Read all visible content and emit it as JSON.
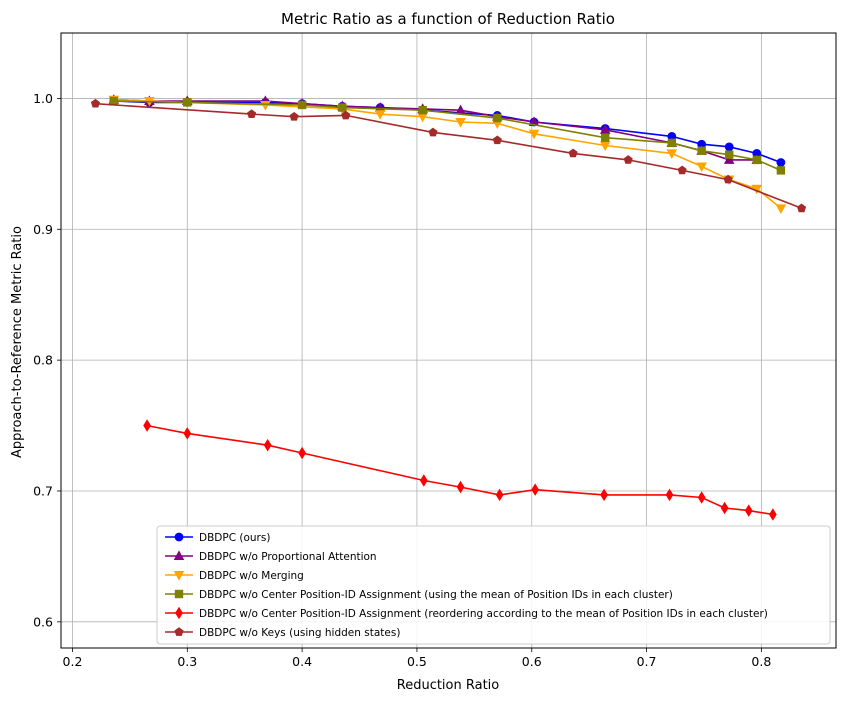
{
  "chart_data": {
    "type": "line",
    "title": "Metric Ratio as a function of Reduction Ratio",
    "xlabel": "Reduction Ratio",
    "ylabel": "Approach-to-Reference Metric Ratio",
    "xlim": [
      0.19,
      0.865
    ],
    "ylim": [
      0.58,
      1.05
    ],
    "xticks": [
      "0.2",
      "0.3",
      "0.4",
      "0.5",
      "0.6",
      "0.7",
      "0.8"
    ],
    "yticks": [
      "0.6",
      "0.7",
      "0.8",
      "0.9",
      "1.0"
    ],
    "grid": true,
    "legend_position": "lower-right",
    "series": [
      {
        "name": "DBDPC (ours)",
        "color": "#0000ff",
        "marker": "circle",
        "x": [
          0.236,
          0.267,
          0.3,
          0.368,
          0.4,
          0.435,
          0.468,
          0.505,
          0.57,
          0.602,
          0.664,
          0.722,
          0.748,
          0.772,
          0.796,
          0.817
        ],
        "y": [
          0.998,
          0.997,
          0.997,
          0.997,
          0.996,
          0.994,
          0.993,
          0.991,
          0.987,
          0.982,
          0.977,
          0.971,
          0.965,
          0.963,
          0.958,
          0.951
        ]
      },
      {
        "name": "DBDPC w/o Proportional Attention",
        "color": "#800080",
        "marker": "triangle-up",
        "x": [
          0.236,
          0.267,
          0.3,
          0.368,
          0.4,
          0.435,
          0.468,
          0.505,
          0.538,
          0.57,
          0.602,
          0.664,
          0.722,
          0.748,
          0.772,
          0.796
        ],
        "y": [
          0.999,
          0.998,
          0.998,
          0.998,
          0.996,
          0.994,
          0.993,
          0.992,
          0.991,
          0.986,
          0.982,
          0.976,
          0.966,
          0.96,
          0.953,
          0.953
        ]
      },
      {
        "name": "DBDPC w/o Merging",
        "color": "#ffa500",
        "marker": "triangle-down",
        "x": [
          0.236,
          0.267,
          0.3,
          0.368,
          0.435,
          0.468,
          0.505,
          0.538,
          0.57,
          0.602,
          0.664,
          0.722,
          0.748,
          0.772,
          0.796,
          0.817
        ],
        "y": [
          0.999,
          0.998,
          0.997,
          0.995,
          0.992,
          0.988,
          0.986,
          0.982,
          0.981,
          0.973,
          0.964,
          0.958,
          0.948,
          0.938,
          0.931,
          0.916
        ]
      },
      {
        "name": "DBDPC w/o Center Position-ID Assignment (using the mean of Position IDs in each cluster)",
        "color": "#808000",
        "marker": "square",
        "x": [
          0.236,
          0.3,
          0.4,
          0.435,
          0.505,
          0.57,
          0.664,
          0.722,
          0.748,
          0.772,
          0.796,
          0.817
        ],
        "y": [
          0.998,
          0.997,
          0.995,
          0.993,
          0.991,
          0.985,
          0.97,
          0.966,
          0.96,
          0.957,
          0.953,
          0.945
        ]
      },
      {
        "name": "DBDPC w/o Center Position-ID Assignment (reordering according to the mean of Position IDs in each cluster)",
        "color": "#ff0000",
        "marker": "thin-diamond",
        "x": [
          0.265,
          0.3,
          0.37,
          0.4,
          0.506,
          0.538,
          0.572,
          0.603,
          0.663,
          0.72,
          0.748,
          0.768,
          0.789,
          0.81
        ],
        "y": [
          0.75,
          0.744,
          0.735,
          0.729,
          0.708,
          0.703,
          0.697,
          0.701,
          0.697,
          0.697,
          0.695,
          0.687,
          0.685,
          0.682
        ]
      },
      {
        "name": "DBDPC w/o Keys (using hidden states)",
        "color": "#a52a2a",
        "marker": "pentagon",
        "x": [
          0.22,
          0.356,
          0.393,
          0.438,
          0.514,
          0.57,
          0.636,
          0.684,
          0.731,
          0.771,
          0.835
        ],
        "y": [
          0.996,
          0.988,
          0.986,
          0.987,
          0.974,
          0.968,
          0.958,
          0.953,
          0.945,
          0.938,
          0.916
        ]
      }
    ]
  }
}
